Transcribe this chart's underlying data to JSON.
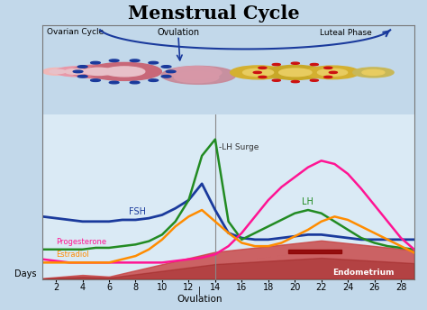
{
  "title": "Menstrual Cycle",
  "title_fontsize": 15,
  "xlabel": "Ovulation",
  "days_label": "Days",
  "x_ticks": [
    2,
    4,
    6,
    8,
    10,
    12,
    14,
    16,
    18,
    20,
    22,
    24,
    26,
    28
  ],
  "x_range": [
    1,
    29
  ],
  "y_range": [
    0,
    10
  ],
  "background_color": "#c2d8ea",
  "plot_bg_color": "#daeaf5",
  "ovulation_line_x": 14,
  "FSH_label": "FSH",
  "LH_label": "LH",
  "LHsurge_label": "-LH Surge",
  "progesterone_label": "Progesterone",
  "estradiol_label": "Estradiol",
  "ovarian_label": "Ovarian Cycle",
  "luteal_label": "Luteal Phase",
  "endometrium_label": "Endometrium",
  "fsh_color": "#1a3a9c",
  "lh_color": "#228B22",
  "progesterone_color": "#ff1493",
  "estradiol_color": "#ff8c00",
  "line_width": 1.8,
  "days": [
    1,
    2,
    3,
    4,
    5,
    6,
    7,
    8,
    9,
    10,
    11,
    12,
    13,
    14,
    15,
    16,
    17,
    18,
    19,
    20,
    21,
    22,
    23,
    24,
    25,
    26,
    27,
    28,
    29
  ],
  "fsh_values": [
    3.8,
    3.7,
    3.6,
    3.5,
    3.5,
    3.5,
    3.6,
    3.6,
    3.7,
    3.9,
    4.3,
    4.8,
    5.8,
    4.2,
    2.8,
    2.5,
    2.4,
    2.4,
    2.5,
    2.6,
    2.7,
    2.7,
    2.6,
    2.5,
    2.4,
    2.4,
    2.4,
    2.4,
    2.4
  ],
  "lh_values": [
    1.8,
    1.8,
    1.8,
    1.8,
    1.9,
    1.9,
    2.0,
    2.1,
    2.3,
    2.7,
    3.5,
    4.8,
    7.5,
    8.5,
    3.5,
    2.4,
    2.8,
    3.2,
    3.6,
    4.0,
    4.2,
    4.0,
    3.5,
    3.0,
    2.5,
    2.2,
    2.0,
    1.9,
    1.8
  ],
  "progesterone_values": [
    1.2,
    1.1,
    1.0,
    1.0,
    1.0,
    1.0,
    1.0,
    1.0,
    1.0,
    1.0,
    1.1,
    1.2,
    1.3,
    1.5,
    2.0,
    2.8,
    3.8,
    4.8,
    5.6,
    6.2,
    6.8,
    7.2,
    7.0,
    6.4,
    5.5,
    4.5,
    3.5,
    2.5,
    1.8
  ],
  "estradiol_values": [
    1.0,
    1.0,
    1.0,
    1.0,
    1.0,
    1.0,
    1.2,
    1.4,
    1.8,
    2.4,
    3.2,
    3.8,
    4.2,
    3.5,
    2.8,
    2.2,
    2.0,
    2.0,
    2.2,
    2.6,
    3.0,
    3.5,
    3.8,
    3.6,
    3.2,
    2.8,
    2.4,
    2.0,
    1.6
  ]
}
